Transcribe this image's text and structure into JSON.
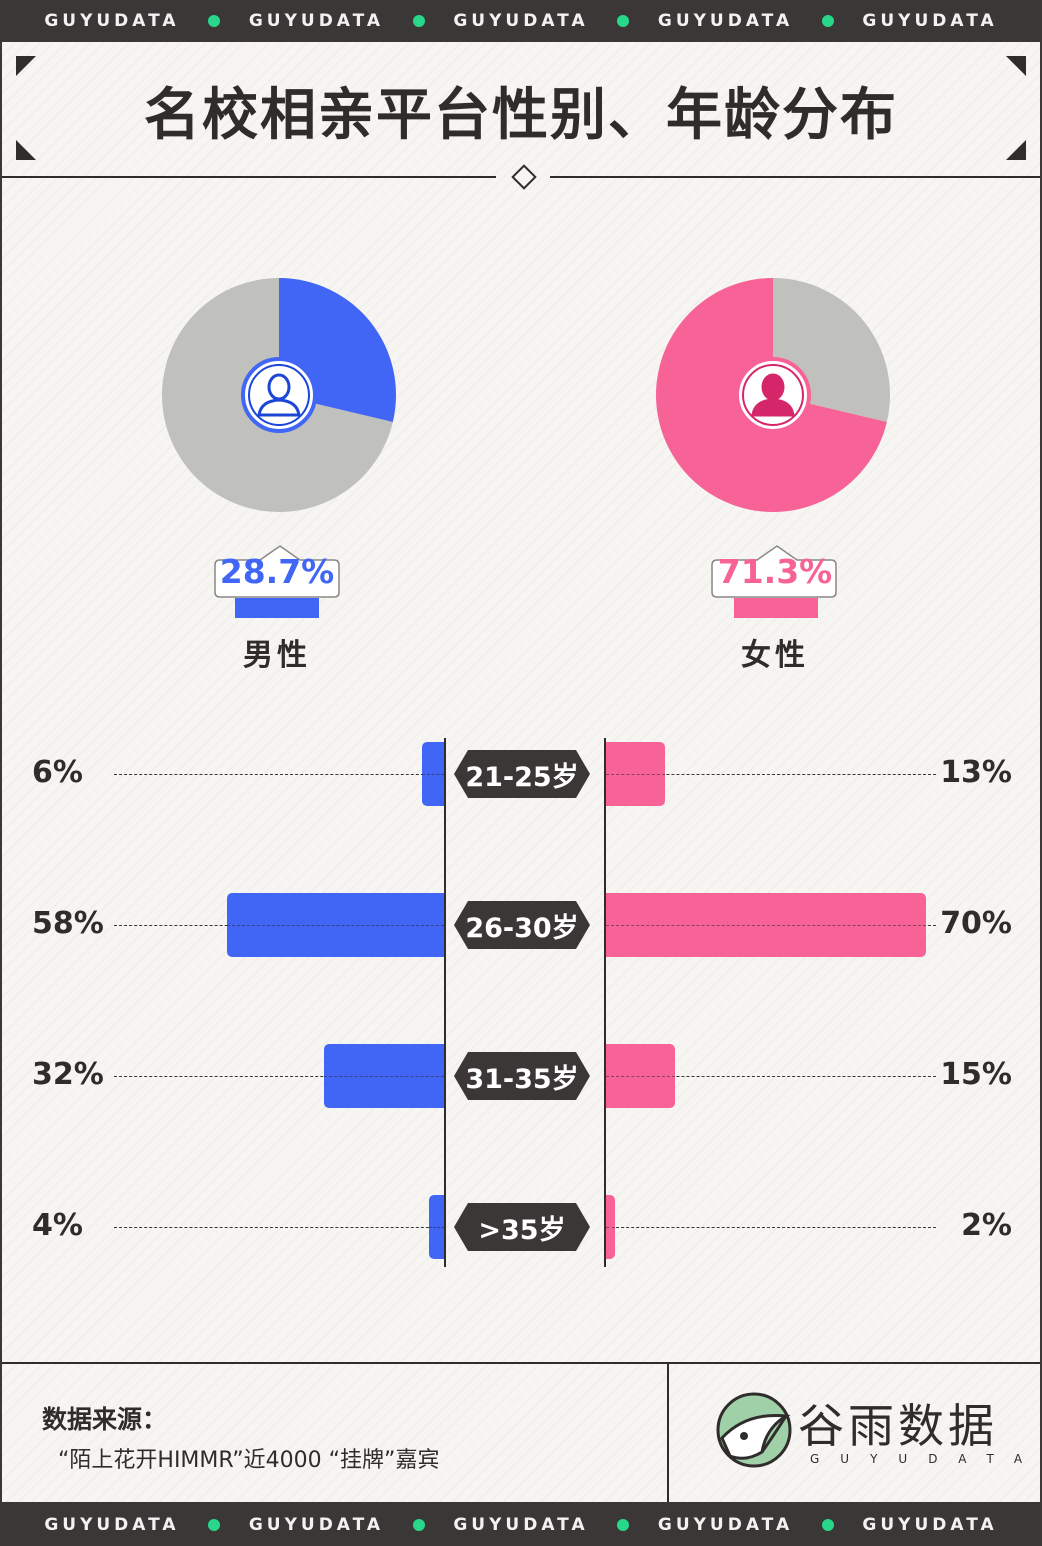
{
  "header": {
    "band_word": "GUYUDATA",
    "band_repeats": 5,
    "title": "名校相亲平台性别、年龄分布"
  },
  "colors": {
    "male": "#4166f5",
    "female": "#f76297",
    "male_dark": "#1c46d6",
    "female_dark": "#d6266a",
    "grey": "#c0c0bd",
    "green_dot": "#28d88a",
    "dark": "#3a3736"
  },
  "chart_data": [
    {
      "type": "pie",
      "title": "",
      "slices": [
        {
          "label": "男性",
          "value": 28.7
        },
        {
          "label": "",
          "value": 71.3
        }
      ],
      "icon": "male-user-icon"
    },
    {
      "type": "pie",
      "title": "",
      "slices": [
        {
          "label": "女性",
          "value": 71.3
        },
        {
          "label": "",
          "value": 28.7
        }
      ],
      "icon": "female-user-icon"
    },
    {
      "type": "bar",
      "orientation": "horizontal-butterfly",
      "categories": [
        "21-25岁",
        "26-30岁",
        "31-35岁",
        ">35岁"
      ],
      "series": [
        {
          "name": "男性",
          "values": [
            6,
            58,
            32,
            4
          ],
          "labels": [
            "6%",
            "58%",
            "32%",
            "4%"
          ]
        },
        {
          "name": "女性",
          "values": [
            13,
            70,
            15,
            2
          ],
          "labels": [
            "13%",
            "70%",
            "15%",
            "2%"
          ]
        }
      ],
      "xlim": [
        0,
        70
      ]
    }
  ],
  "gender": {
    "male": {
      "pct_text": "28.7%",
      "name": "男性"
    },
    "female": {
      "pct_text": "71.3%",
      "name": "女性"
    }
  },
  "footer": {
    "source_title": "数据来源：",
    "source_text": "“陌上花开HIMMR”近4000 “挂牌”嘉宾",
    "brand_cn": "谷雨数据",
    "brand_en": "GUYUDATA"
  }
}
